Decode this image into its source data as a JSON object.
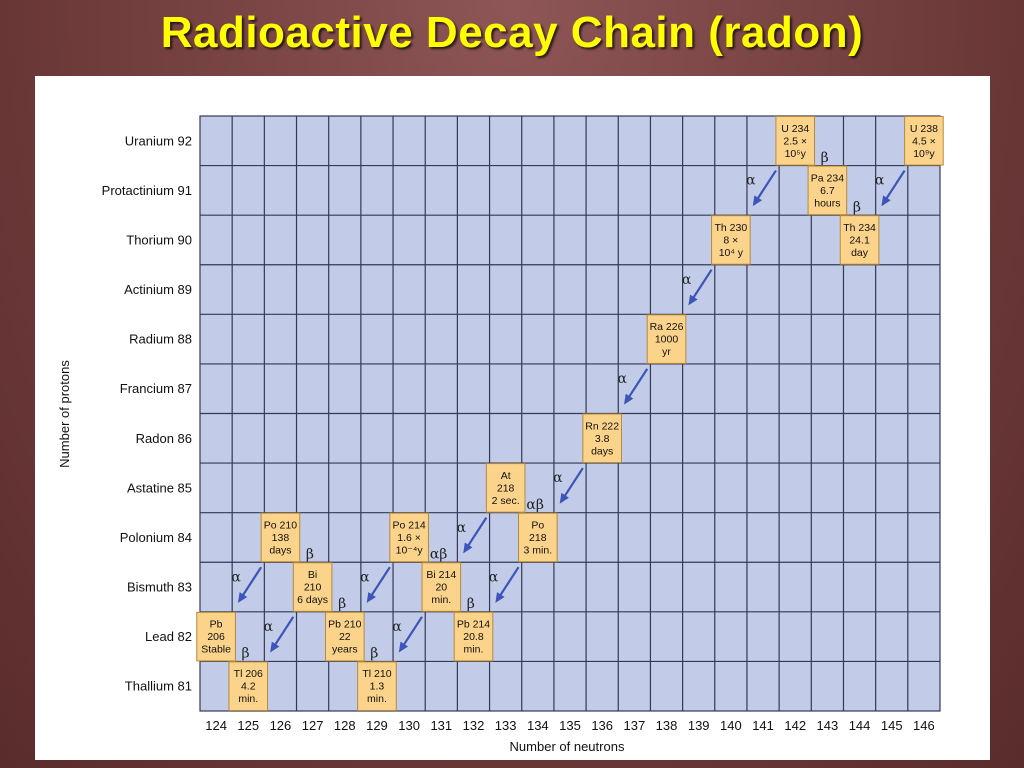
{
  "title": "Radioactive Decay Chain (radon)",
  "chart_data": {
    "type": "scatter",
    "xlabel": "Number of neutrons",
    "ylabel": "Number of protons",
    "x_ticks": [
      124,
      125,
      126,
      127,
      128,
      129,
      130,
      131,
      132,
      133,
      134,
      135,
      136,
      137,
      138,
      139,
      140,
      141,
      142,
      143,
      144,
      145,
      146
    ],
    "y_ticks": [
      {
        "z": 92,
        "label": "Uranium 92"
      },
      {
        "z": 91,
        "label": "Protactinium 91"
      },
      {
        "z": 90,
        "label": "Thorium 90"
      },
      {
        "z": 89,
        "label": "Actinium 89"
      },
      {
        "z": 88,
        "label": "Radium 88"
      },
      {
        "z": 87,
        "label": "Francium 87"
      },
      {
        "z": 86,
        "label": "Radon 86"
      },
      {
        "z": 85,
        "label": "Astatine 85"
      },
      {
        "z": 84,
        "label": "Polonium 84"
      },
      {
        "z": 83,
        "label": "Bismuth 83"
      },
      {
        "z": 82,
        "label": "Lead 82"
      },
      {
        "z": 81,
        "label": "Thallium 81"
      }
    ],
    "xlim": [
      123.5,
      146.5
    ],
    "ylim": [
      80.5,
      92.5
    ],
    "grid": true,
    "nuclides": [
      {
        "n": 146,
        "z": 92,
        "lines": [
          "U 238",
          "4.5 ×",
          "10⁹y"
        ]
      },
      {
        "n": 144,
        "z": 90,
        "lines": [
          "Th 234",
          "24.1",
          "day"
        ]
      },
      {
        "n": 143,
        "z": 91,
        "lines": [
          "Pa 234",
          "6.7",
          "hours"
        ]
      },
      {
        "n": 142,
        "z": 92,
        "lines": [
          "U 234",
          "2.5 ×",
          "10⁵y"
        ]
      },
      {
        "n": 140,
        "z": 90,
        "lines": [
          "Th 230",
          "8 ×",
          "10⁴ y"
        ]
      },
      {
        "n": 138,
        "z": 88,
        "lines": [
          "Ra 226",
          "1000",
          "yr"
        ]
      },
      {
        "n": 136,
        "z": 86,
        "lines": [
          "Rn 222",
          "3.8",
          "days"
        ]
      },
      {
        "n": 134,
        "z": 84,
        "lines": [
          "Po",
          "218",
          "3 min."
        ]
      },
      {
        "n": 133,
        "z": 85,
        "lines": [
          "At",
          "218",
          "2 sec."
        ]
      },
      {
        "n": 132,
        "z": 82,
        "lines": [
          "Pb 214",
          "20.8",
          "min."
        ]
      },
      {
        "n": 131,
        "z": 83,
        "lines": [
          "Bi 214",
          "20",
          "min."
        ]
      },
      {
        "n": 130,
        "z": 84,
        "lines": [
          "Po 214",
          "1.6 ×",
          "10⁻⁴y"
        ]
      },
      {
        "n": 129,
        "z": 81,
        "lines": [
          "Tl 210",
          "1.3",
          "min."
        ]
      },
      {
        "n": 128,
        "z": 82,
        "lines": [
          "Pb 210",
          "22",
          "years"
        ]
      },
      {
        "n": 127,
        "z": 83,
        "lines": [
          "Bi",
          "210",
          "6 days"
        ]
      },
      {
        "n": 126,
        "z": 84,
        "lines": [
          "Po 210",
          "138",
          "days"
        ]
      },
      {
        "n": 125,
        "z": 81,
        "lines": [
          "Tl 206",
          "4.2",
          "min."
        ]
      },
      {
        "n": 124,
        "z": 82,
        "lines": [
          "Pb",
          "206",
          "Stable"
        ]
      }
    ],
    "decays": [
      {
        "from": [
          146,
          92
        ],
        "to": [
          144,
          90
        ],
        "label": "α"
      },
      {
        "from": [
          144,
          90
        ],
        "to": [
          143,
          91
        ],
        "label": "β"
      },
      {
        "from": [
          143,
          91
        ],
        "to": [
          142,
          92
        ],
        "label": "β"
      },
      {
        "from": [
          142,
          92
        ],
        "to": [
          140,
          90
        ],
        "label": "α"
      },
      {
        "from": [
          140,
          90
        ],
        "to": [
          138,
          88
        ],
        "label": "α"
      },
      {
        "from": [
          138,
          88
        ],
        "to": [
          136,
          86
        ],
        "label": "α"
      },
      {
        "from": [
          136,
          86
        ],
        "to": [
          134,
          84
        ],
        "label": "α"
      },
      {
        "from": [
          134,
          84
        ],
        "to": [
          133,
          85
        ],
        "label": "αβ"
      },
      {
        "from": [
          133,
          85
        ],
        "to": [
          131,
          83
        ],
        "label": "α"
      },
      {
        "from": [
          134,
          84
        ],
        "to": [
          132,
          82
        ],
        "label": "α"
      },
      {
        "from": [
          132,
          82
        ],
        "to": [
          131,
          83
        ],
        "label": "β"
      },
      {
        "from": [
          131,
          83
        ],
        "to": [
          130,
          84
        ],
        "label": "αβ"
      },
      {
        "from": [
          131,
          83
        ],
        "to": [
          129,
          81
        ],
        "label": "α"
      },
      {
        "from": [
          130,
          84
        ],
        "to": [
          128,
          82
        ],
        "label": "α"
      },
      {
        "from": [
          129,
          81
        ],
        "to": [
          128,
          82
        ],
        "label": "β"
      },
      {
        "from": [
          128,
          82
        ],
        "to": [
          127,
          83
        ],
        "label": "β"
      },
      {
        "from": [
          127,
          83
        ],
        "to": [
          126,
          84
        ],
        "label": "β"
      },
      {
        "from": [
          127,
          83
        ],
        "to": [
          125,
          81
        ],
        "label": "α"
      },
      {
        "from": [
          126,
          84
        ],
        "to": [
          124,
          82
        ],
        "label": "α"
      },
      {
        "from": [
          125,
          81
        ],
        "to": [
          124,
          82
        ],
        "label": "β"
      }
    ]
  }
}
